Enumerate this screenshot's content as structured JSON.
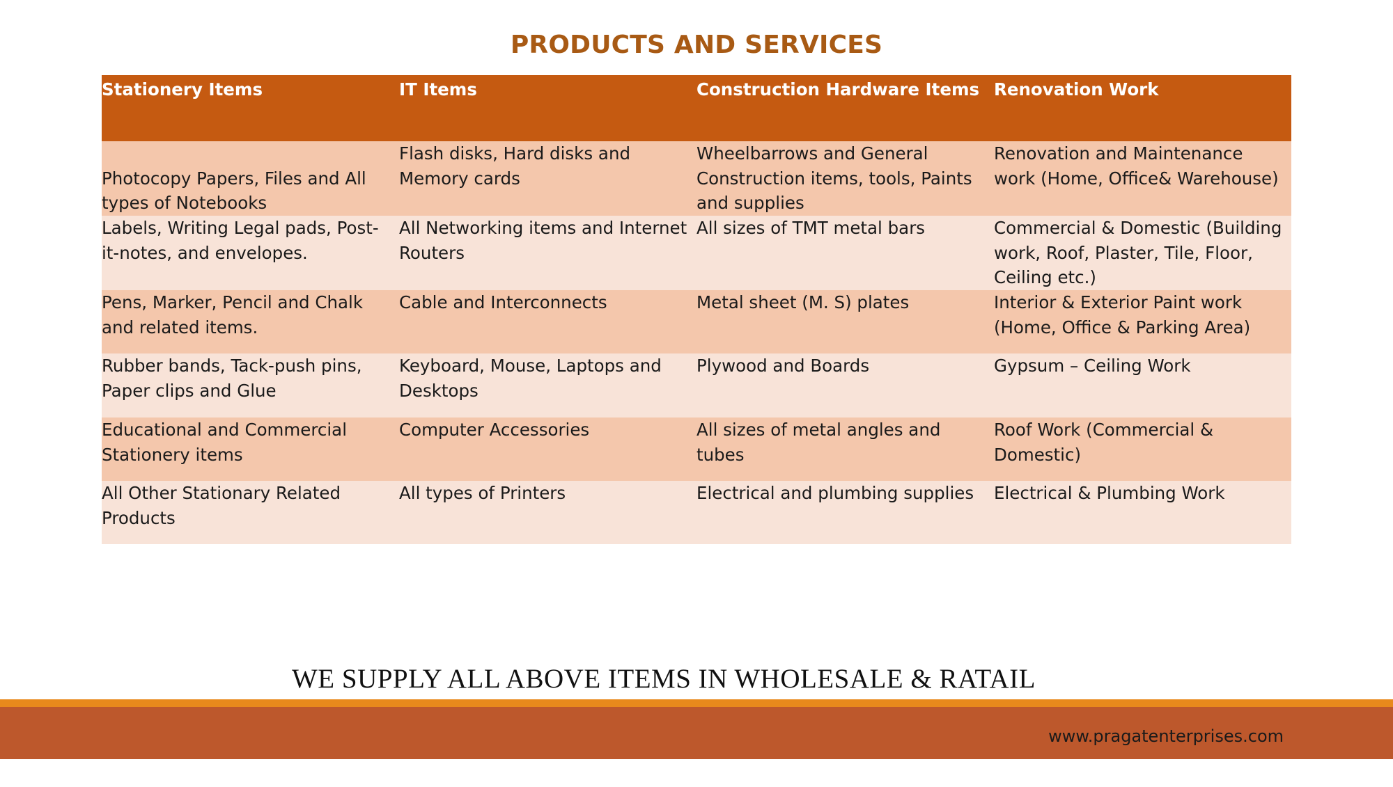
{
  "title": "PRODUCTS AND SERVICES",
  "columns": [
    "Stationery Items",
    "IT Items",
    "Construction Hardware Items",
    "Renovation Work"
  ],
  "rows": [
    [
      " Photocopy Papers, Files and All types of Notebooks",
      "Flash disks, Hard disks and Memory cards",
      "Wheelbarrows and General Construction items, tools, Paints and supplies",
      "Renovation and Maintenance work (Home, Office& Warehouse)"
    ],
    [
      "Labels, Writing Legal pads, Post-it-notes, and envelopes.",
      "All Networking items and Internet Routers",
      "All sizes of TMT metal bars",
      "Commercial & Domestic (Building work, Roof, Plaster, Tile, Floor, Ceiling etc.)"
    ],
    [
      "Pens, Marker, Pencil and Chalk and related items.",
      "Cable and Interconnects",
      "Metal sheet (M. S) plates",
      "Interior & Exterior Paint work (Home, Office & Parking Area)"
    ],
    [
      "Rubber bands, Tack-push pins, Paper clips and Glue",
      "Keyboard, Mouse, Laptops and Desktops",
      "Plywood and Boards",
      "Gypsum – Ceiling Work"
    ],
    [
      "Educational and Commercial Stationery items",
      "Computer Accessories",
      "All sizes of metal angles and tubes",
      "Roof Work (Commercial & Domestic)"
    ],
    [
      "All Other Stationary Related Products",
      "All types of Printers",
      "Electrical and plumbing supplies",
      "Electrical & Plumbing Work"
    ]
  ],
  "tagline": "WE SUPPLY ALL ABOVE ITEMS IN WHOLESALE & RATAIL",
  "footer": {
    "url": "www.pragatenterprises.com"
  },
  "colors": {
    "title": "#a85a14",
    "header_bg": "#c55a11",
    "row_odd": "#f4c7ac",
    "row_even": "#f8e3d8",
    "footer_line": "#e8891c",
    "footer_band": "#bd582c"
  }
}
